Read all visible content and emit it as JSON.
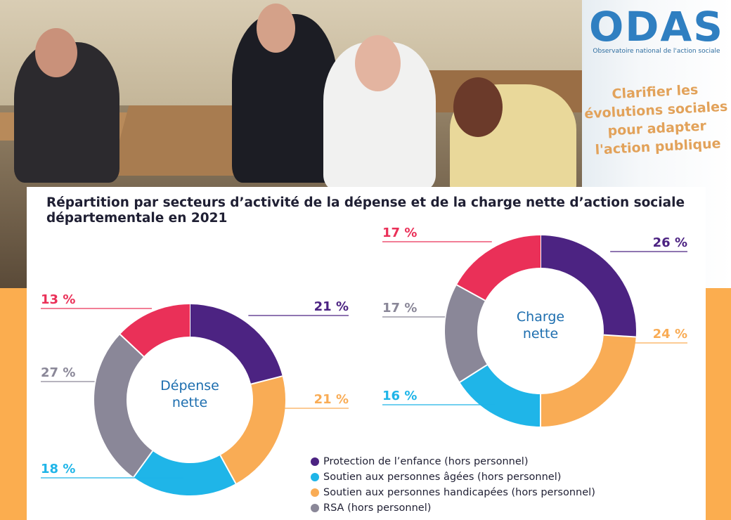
{
  "banner": {
    "logo": "ODAS",
    "subtitle": "Observatoire national de l'action sociale",
    "slogan_lines": [
      "Clarifier les",
      "évolutions sociales",
      "pour adapter",
      "l'action publique"
    ]
  },
  "colors": {
    "background": "#fbad4f",
    "protection": "#4c2382",
    "agees": "#1fb5e8",
    "handicapees": "#f9ac55",
    "rsa": "#8a8798",
    "recent": "#ea3058",
    "center_label": "#1d6eaf"
  },
  "legend": [
    {
      "label": "Protection de l’enfance (hors personnel)",
      "color": "#4c2382"
    },
    {
      "label": "Soutien aux personnes âgées (hors personnel)",
      "color": "#1fb5e8"
    },
    {
      "label": "Soutien aux personnes handicapées (hors personnel)",
      "color": "#f9ac55"
    },
    {
      "label": "RSA (hors personnel)",
      "color": "#8a8798"
    }
  ],
  "chart_data": {
    "type": "pie",
    "title": "Répartition par secteurs d’activité de la dépense et de la charge nette d’action sociale départementale en 2021",
    "charts": [
      {
        "name_lines": [
          "Dépense",
          "nette"
        ],
        "slices": [
          {
            "value": 21,
            "label": "21 %",
            "color": "#4c2382"
          },
          {
            "value": 21,
            "label": "21 %",
            "color": "#f9ac55"
          },
          {
            "value": 18,
            "label": "18 %",
            "color": "#1fb5e8"
          },
          {
            "value": 27,
            "label": "27 %",
            "color": "#8a8798"
          },
          {
            "value": 13,
            "label": "13 %",
            "color": "#ea3058"
          }
        ]
      },
      {
        "name_lines": [
          "Charge",
          "nette"
        ],
        "slices": [
          {
            "value": 26,
            "label": "26 %",
            "color": "#4c2382"
          },
          {
            "value": 24,
            "label": "24 %",
            "color": "#f9ac55"
          },
          {
            "value": 16,
            "label": "16 %",
            "color": "#1fb5e8"
          },
          {
            "value": 17,
            "label": "17 %",
            "color": "#8a8798"
          },
          {
            "value": 17,
            "label": "17 %",
            "color": "#ea3058"
          }
        ]
      }
    ]
  }
}
